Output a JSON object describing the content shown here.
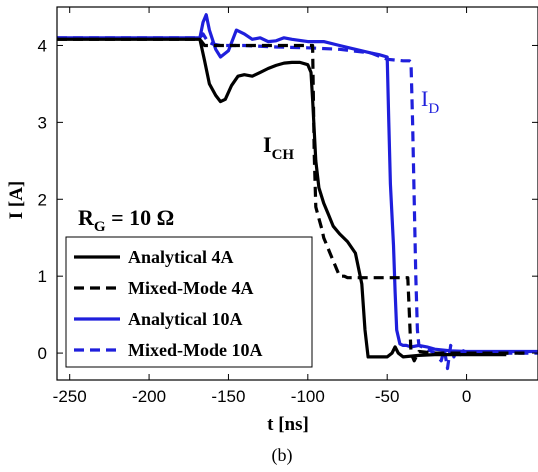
{
  "chart_data": {
    "type": "line",
    "xlabel": "t [ns]",
    "ylabel": "I [A]",
    "xlim": [
      -258,
      45
    ],
    "ylim": [
      -0.35,
      4.5
    ],
    "x_ticks": [
      -250,
      -200,
      -150,
      -100,
      -50,
      0
    ],
    "y_ticks": [
      0,
      1,
      2,
      3,
      4
    ],
    "grid": false,
    "legend_position": "bottom-left",
    "caption": "(b)",
    "annotations": {
      "rg": {
        "main": "R",
        "sub": "G",
        "rest": " = 10 Ω"
      },
      "ich": {
        "main": "I",
        "sub": "CH"
      },
      "id": {
        "main": "I",
        "sub": "D",
        "color": "#1f1fdc"
      }
    },
    "series": [
      {
        "name": "Analytical 4A",
        "color": "#000000",
        "dash": "solid",
        "x": [
          -258,
          -168,
          -165,
          -162,
          -158,
          -155,
          -152,
          -148,
          -144,
          -140,
          -135,
          -130,
          -125,
          -120,
          -115,
          -110,
          -105,
          -100,
          -98,
          -97,
          -96,
          -95,
          -93,
          -90,
          -87,
          -84,
          -80,
          -75,
          -70,
          -66,
          -64,
          -62,
          -58,
          -55,
          -50,
          -47,
          -45,
          -43,
          -40,
          -30,
          -20,
          25
        ],
        "y": [
          4.08,
          4.08,
          3.8,
          3.5,
          3.35,
          3.27,
          3.3,
          3.48,
          3.6,
          3.62,
          3.6,
          3.65,
          3.7,
          3.74,
          3.77,
          3.78,
          3.78,
          3.75,
          3.65,
          3.3,
          2.9,
          2.5,
          2.15,
          1.95,
          1.8,
          1.65,
          1.55,
          1.45,
          1.3,
          0.9,
          0.3,
          -0.05,
          -0.05,
          -0.05,
          -0.05,
          0.0,
          0.08,
          0.0,
          -0.05,
          -0.03,
          -0.02,
          -0.02
        ]
      },
      {
        "name": "Mixed-Mode 4A",
        "color": "#000000",
        "dash": "dashed",
        "x": [
          -258,
          -168,
          -165,
          -160,
          -150,
          -140,
          -130,
          -120,
          -110,
          -100,
          -97,
          -96,
          -95,
          -93,
          -91,
          -90,
          -88,
          -86,
          -84,
          -82,
          -80,
          -79,
          -77,
          -75,
          -73,
          -70,
          -60,
          -50,
          -40,
          -37,
          -36,
          -35,
          -33,
          -30,
          -20,
          40
        ],
        "y": [
          4.08,
          4.08,
          4.0,
          4.0,
          4.0,
          4.0,
          4.0,
          4.0,
          4.0,
          4.0,
          4.0,
          2.6,
          1.9,
          1.75,
          1.6,
          1.5,
          1.4,
          1.3,
          1.2,
          1.1,
          1.0,
          1.0,
          1.0,
          0.98,
          0.98,
          0.98,
          0.98,
          0.98,
          0.98,
          0.98,
          0.5,
          0.0,
          -0.1,
          0.02,
          0.0,
          0.0
        ]
      },
      {
        "name": "Analytical 10A",
        "color": "#1f1fdc",
        "dash": "solid",
        "x": [
          -258,
          -168,
          -166,
          -164,
          -162,
          -158,
          -155,
          -150,
          -145,
          -140,
          -135,
          -130,
          -125,
          -120,
          -115,
          -110,
          -100,
          -90,
          -80,
          -70,
          -60,
          -55,
          -50,
          -49,
          -48,
          -46,
          -45,
          -44,
          -42,
          -40,
          -38,
          -35,
          -30,
          -25,
          -20,
          -10,
          0,
          45
        ],
        "y": [
          4.1,
          4.1,
          4.3,
          4.4,
          4.2,
          3.95,
          3.85,
          3.93,
          4.2,
          4.15,
          4.08,
          4.1,
          4.05,
          4.06,
          4.1,
          4.08,
          4.05,
          4.05,
          4.0,
          3.95,
          3.9,
          3.88,
          3.85,
          3.0,
          2.2,
          1.4,
          0.8,
          0.3,
          0.12,
          0.1,
          0.1,
          0.08,
          0.1,
          0.08,
          0.05,
          0.03,
          0.02,
          0.02
        ]
      },
      {
        "name": "Mixed-Mode 10A",
        "color": "#1f1fdc",
        "dash": "dashed",
        "x": [
          -258,
          -168,
          -166,
          -163,
          -160,
          -155,
          -150,
          -140,
          -120,
          -100,
          -80,
          -60,
          -50,
          -40,
          -36,
          -35,
          -34,
          -33,
          -32,
          -31,
          -30,
          -28,
          -25,
          -20,
          -16,
          -14,
          -12,
          -10,
          -8,
          -6,
          -4,
          -2,
          0,
          45
        ],
        "y": [
          4.1,
          4.1,
          4.15,
          4.05,
          4.02,
          4.0,
          4.0,
          4.0,
          3.98,
          3.97,
          3.95,
          3.9,
          3.82,
          3.8,
          3.8,
          3.78,
          3.0,
          2.0,
          1.0,
          0.3,
          0.1,
          0.08,
          0.05,
          0.0,
          -0.1,
          0.05,
          -0.2,
          0.1,
          -0.05,
          0.05,
          -0.02,
          0.03,
          0.0,
          0.0
        ]
      }
    ]
  }
}
